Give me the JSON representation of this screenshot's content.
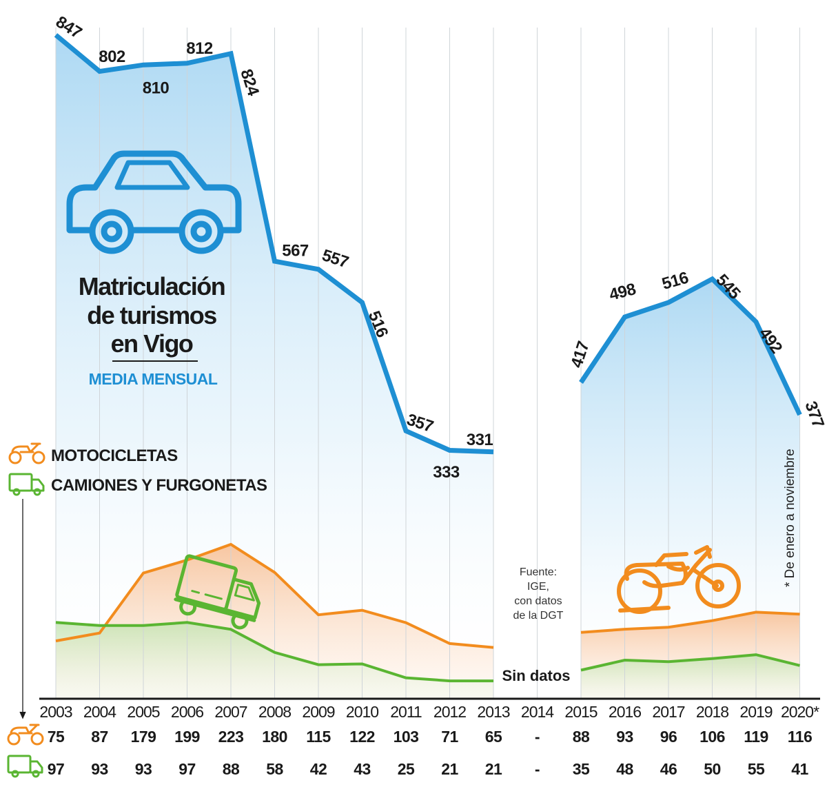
{
  "title": {
    "line1": "Matriculación",
    "line2": "de turismos",
    "line3": "en Vigo",
    "subtitle": "MEDIA MENSUAL"
  },
  "legend": {
    "motorcycles": "MOTOCICLETAS",
    "trucks": "CAMIONES Y FURGONETAS"
  },
  "source": [
    "Fuente:",
    "IGE,",
    "con datos",
    "de la DGT"
  ],
  "note": "* De enero a noviembre",
  "no_data_label": "Sin datos",
  "colors": {
    "cars": "#1e8fd3",
    "motorcycles": "#f28c1e",
    "trucks": "#5ab532",
    "text": "#1a1a1a"
  },
  "icons": [
    "car-icon",
    "motorcycle-icon",
    "truck-icon"
  ],
  "chart_data": {
    "type": "line",
    "x": [
      "2003",
      "2004",
      "2005",
      "2006",
      "2007",
      "2008",
      "2009",
      "2010",
      "2011",
      "2012",
      "2013",
      "2014",
      "2015",
      "2016",
      "2017",
      "2018",
      "2019",
      "2020*"
    ],
    "series": [
      {
        "name": "Turismos",
        "values": [
          847,
          802,
          810,
          812,
          824,
          567,
          557,
          516,
          357,
          333,
          331,
          null,
          417,
          498,
          516,
          545,
          492,
          377
        ]
      },
      {
        "name": "MOTOCICLETAS",
        "values": [
          75,
          87,
          179,
          199,
          223,
          180,
          115,
          122,
          103,
          71,
          65,
          null,
          88,
          93,
          96,
          106,
          119,
          116
        ]
      },
      {
        "name": "CAMIONES Y FURGONETAS",
        "values": [
          97,
          93,
          93,
          97,
          88,
          58,
          42,
          43,
          25,
          21,
          21,
          null,
          35,
          48,
          46,
          50,
          55,
          41
        ]
      }
    ],
    "table": {
      "motorcycles": [
        "75",
        "87",
        "179",
        "199",
        "223",
        "180",
        "115",
        "122",
        "103",
        "71",
        "65",
        "-",
        "88",
        "93",
        "96",
        "106",
        "119",
        "116"
      ],
      "trucks": [
        "97",
        "93",
        "93",
        "97",
        "88",
        "58",
        "42",
        "43",
        "25",
        "21",
        "21",
        "-",
        "35",
        "48",
        "46",
        "50",
        "55",
        "41"
      ]
    },
    "grid": true,
    "legend_position": "middle-left"
  }
}
